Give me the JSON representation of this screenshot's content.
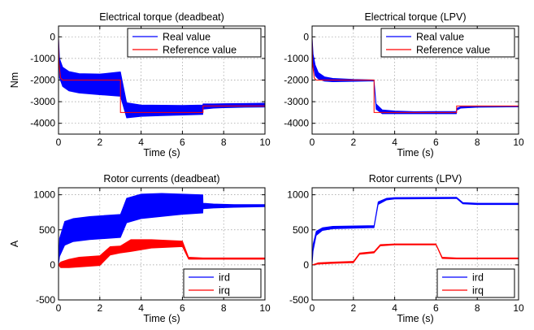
{
  "colors": {
    "real": "#0000ff",
    "reference": "#ff0000",
    "ird": "#0000ff",
    "irq": "#ff0000"
  },
  "chart_data": [
    {
      "type": "line",
      "title": "Electrical torque (deadbeat)",
      "xlabel": "Time (s)",
      "ylabel": "Nm",
      "xlim": [
        0,
        10
      ],
      "ylim": [
        -4500,
        500
      ],
      "xticks": [
        "0",
        "2",
        "4",
        "6",
        "8",
        "10"
      ],
      "yticks": [
        "-4000",
        "-3000",
        "-2000",
        "-1000",
        "0"
      ],
      "grid": true,
      "legend": "top-right",
      "series": [
        {
          "name": "Real value",
          "color": "#0000ff",
          "band": {
            "x": [
              0,
              0.05,
              0.2,
              0.5,
              1.0,
              2.0,
              2.99,
              3.0,
              3.3,
              4.0,
              5.0,
              6.0,
              6.99,
              7.0,
              7.5,
              8.0,
              9.0,
              10.0
            ],
            "upper": [
              0,
              -1000,
              -1400,
              -1600,
              -1700,
              -1720,
              -1620,
              -1620,
              -3050,
              -3150,
              -3160,
              -3170,
              -3150,
              -3100,
              -3100,
              -3090,
              -3080,
              -3070
            ],
            "lower": [
              0,
              -1900,
              -2300,
              -2500,
              -2600,
              -2680,
              -2750,
              -2750,
              -3750,
              -3680,
              -3650,
              -3620,
              -3590,
              -3350,
              -3300,
              -3280,
              -3260,
              -3250
            ]
          }
        },
        {
          "name": "Reference value",
          "color": "#ff0000",
          "x": [
            0,
            0.02,
            0.1,
            0.2,
            0.3,
            3.0,
            3.0,
            7.0,
            7.0,
            10
          ],
          "y": [
            0,
            -1200,
            -1900,
            -2000,
            -2000,
            -2000,
            -3500,
            -3500,
            -3200,
            -3200
          ]
        }
      ]
    },
    {
      "type": "line",
      "title": "Electrical torque (LPV)",
      "xlabel": "Time (s)",
      "ylabel": "",
      "xlim": [
        0,
        10
      ],
      "ylim": [
        -4500,
        500
      ],
      "xticks": [
        "0",
        "2",
        "4",
        "6",
        "8",
        "10"
      ],
      "yticks": [
        "-4000",
        "-3000",
        "-2000",
        "-1000",
        "0"
      ],
      "grid": true,
      "legend": "top-right",
      "series": [
        {
          "name": "Real value",
          "color": "#0000ff",
          "band": {
            "x": [
              0,
              0.05,
              0.15,
              0.3,
              0.6,
              1.0,
              2.0,
              2.99,
              3.0,
              3.1,
              3.4,
              4.0,
              5.0,
              6.99,
              7.0,
              7.2,
              8.0,
              10.0
            ],
            "upper": [
              0,
              -800,
              -1300,
              -1650,
              -1850,
              -1920,
              -1970,
              -1990,
              -1990,
              -3100,
              -3380,
              -3430,
              -3460,
              -3450,
              -3300,
              -3230,
              -3210,
              -3200
            ],
            "lower": [
              0,
              -1300,
              -1800,
              -1950,
              -2050,
              -2080,
              -2060,
              -2040,
              -2040,
              -3350,
              -3560,
              -3560,
              -3560,
              -3560,
              -3400,
              -3300,
              -3260,
              -3240
            ]
          }
        },
        {
          "name": "Reference value",
          "color": "#ff0000",
          "x": [
            0,
            0.02,
            0.1,
            0.2,
            0.3,
            3.0,
            3.0,
            7.0,
            7.0,
            10
          ],
          "y": [
            0,
            -1200,
            -1900,
            -2000,
            -2000,
            -2000,
            -3500,
            -3500,
            -3200,
            -3200
          ]
        }
      ]
    },
    {
      "type": "line",
      "title": "Rotor currents (deadbeat)",
      "xlabel": "Time (s)",
      "ylabel": "A",
      "xlim": [
        0,
        10
      ],
      "ylim": [
        -500,
        1100
      ],
      "xticks": [
        "0",
        "2",
        "4",
        "6",
        "8",
        "10"
      ],
      "yticks": [
        "-500",
        "0",
        "500",
        "1000"
      ],
      "grid": true,
      "legend": "bottom-right",
      "series": [
        {
          "name": "ird",
          "color": "#0000ff",
          "band": {
            "x": [
              0,
              0.05,
              0.3,
              0.7,
              1.5,
              2.99,
              3.0,
              3.3,
              4.0,
              5.0,
              6.0,
              6.99,
              7.0,
              7.5,
              8.5,
              10.0
            ],
            "upper": [
              0,
              380,
              620,
              660,
              690,
              720,
              720,
              950,
              1010,
              1020,
              1010,
              1000,
              880,
              870,
              860,
              860
            ],
            "lower": [
              0,
              120,
              280,
              330,
              360,
              390,
              390,
              600,
              660,
              690,
              720,
              740,
              800,
              810,
              820,
              830
            ]
          }
        },
        {
          "name": "irq",
          "color": "#ff0000",
          "band": {
            "x": [
              0,
              0.1,
              0.5,
              1.0,
              1.99,
              2.0,
              2.5,
              2.99,
              3.0,
              3.5,
              4.5,
              5.99,
              6.0,
              6.3,
              7.0,
              10.0
            ],
            "upper": [
              0,
              40,
              80,
              110,
              130,
              130,
              260,
              270,
              270,
              360,
              360,
              340,
              340,
              110,
              100,
              100
            ],
            "lower": [
              0,
              -40,
              -40,
              -30,
              -10,
              -10,
              140,
              170,
              170,
              190,
              240,
              260,
              260,
              80,
              80,
              80
            ]
          }
        }
      ]
    },
    {
      "type": "line",
      "title": "Rotor currents (LPV)",
      "xlabel": "Time (s)",
      "ylabel": "",
      "xlim": [
        0,
        10
      ],
      "ylim": [
        -500,
        1100
      ],
      "xticks": [
        "0",
        "2",
        "4",
        "6",
        "8",
        "10"
      ],
      "yticks": [
        "-500",
        "0",
        "500",
        "1000"
      ],
      "grid": true,
      "legend": "bottom-right",
      "series": [
        {
          "name": "ird",
          "color": "#0000ff",
          "band": {
            "x": [
              0,
              0.05,
              0.2,
              0.5,
              1.0,
              2.99,
              3.0,
              3.2,
              3.6,
              4.0,
              6.99,
              7.0,
              7.3,
              8.0,
              10.0
            ],
            "upper": [
              0,
              300,
              480,
              530,
              550,
              560,
              560,
              900,
              950,
              960,
              965,
              965,
              890,
              880,
              880
            ],
            "lower": [
              0,
              200,
              420,
              490,
              515,
              530,
              530,
              860,
              925,
              940,
              945,
              945,
              870,
              860,
              860
            ]
          }
        },
        {
          "name": "irq",
          "color": "#ff0000",
          "band": {
            "x": [
              0,
              0.3,
              1.0,
              1.99,
              2.0,
              2.3,
              2.99,
              3.0,
              3.3,
              4.0,
              5.99,
              6.0,
              6.3,
              7.0,
              10.0
            ],
            "upper": [
              0,
              30,
              40,
              50,
              50,
              170,
              190,
              190,
              290,
              300,
              300,
              300,
              110,
              100,
              100
            ],
            "lower": [
              0,
              10,
              20,
              30,
              30,
              150,
              170,
              170,
              270,
              285,
              285,
              285,
              90,
              85,
              85
            ]
          }
        }
      ]
    }
  ]
}
